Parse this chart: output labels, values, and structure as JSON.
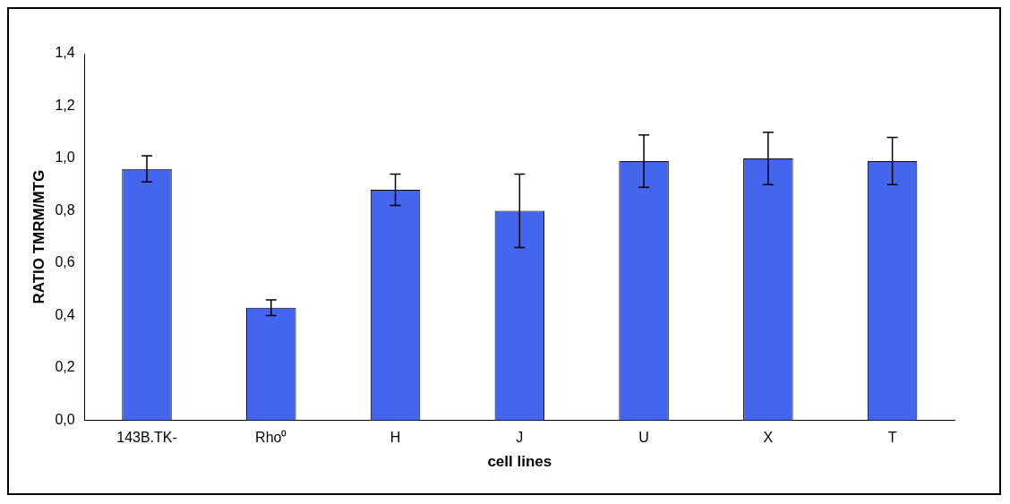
{
  "chart_data": {
    "type": "bar",
    "xlabel": "cell lines",
    "ylabel": "RATIO TMRM/MTG",
    "categories": [
      "143B.TK-",
      "Rho⁰",
      "H",
      "J",
      "U",
      "X",
      "T"
    ],
    "values": [
      0.96,
      0.43,
      0.88,
      0.8,
      0.99,
      1.0,
      0.99
    ],
    "errors": [
      0.05,
      0.03,
      0.06,
      0.14,
      0.1,
      0.1,
      0.09
    ],
    "color": "#4466ee",
    "ylim": [
      0,
      1.4
    ],
    "yticks": [
      {
        "value": 0,
        "label": "0,0"
      },
      {
        "value": 0.2,
        "label": "0,2"
      },
      {
        "value": 0.4,
        "label": "0,4"
      },
      {
        "value": 0.6,
        "label": "0,6"
      },
      {
        "value": 0.8,
        "label": "0,8"
      },
      {
        "value": 1.0,
        "label": "1,0"
      },
      {
        "value": 1.2,
        "label": "1,2"
      },
      {
        "value": 1.4,
        "label": "1,4"
      }
    ],
    "grid": false,
    "legend": false
  }
}
